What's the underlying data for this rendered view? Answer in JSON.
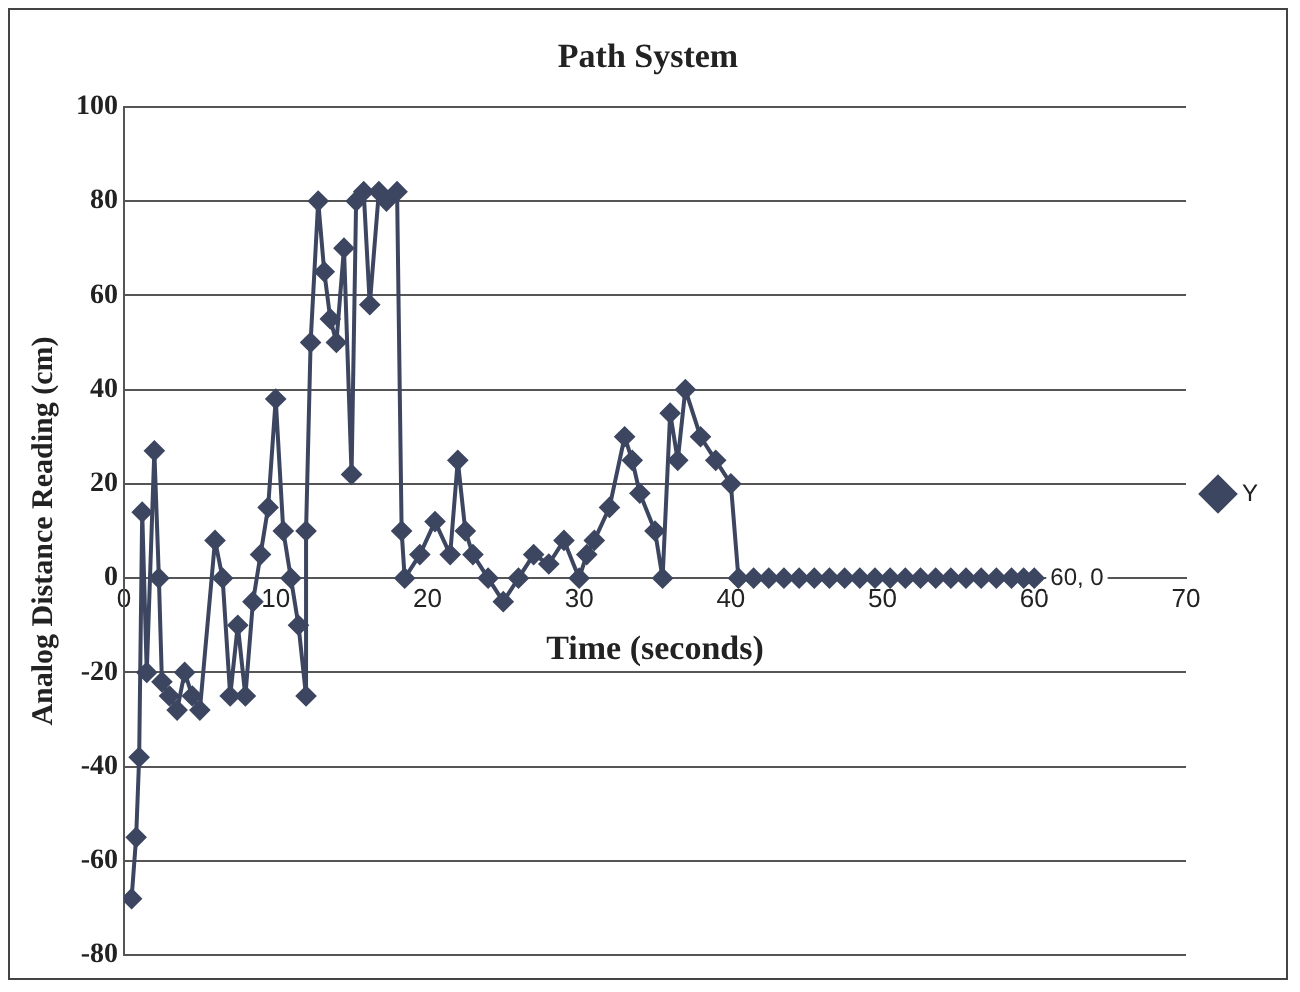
{
  "chart_data": {
    "type": "line",
    "title": "Path System",
    "xlabel": "Time (seconds)",
    "ylabel": "Analog Distance Reading (cm)",
    "xlim": [
      0,
      70
    ],
    "xticks": [
      0,
      10,
      20,
      30,
      40,
      50,
      60,
      70
    ],
    "ylim": [
      -80,
      100
    ],
    "yticks": [
      -80,
      -60,
      -40,
      -20,
      0,
      20,
      40,
      60,
      80,
      100
    ],
    "grid": "y",
    "legend": "right",
    "marker": "diamond",
    "line_style": "solid",
    "annotations": [
      {
        "text": "60, 0",
        "x": 60,
        "y": 0
      }
    ],
    "series": [
      {
        "name": "Y",
        "color": "#3d4660",
        "x": [
          0.5,
          0.8,
          1,
          1.2,
          1.5,
          2,
          2.3,
          2.5,
          3,
          3.5,
          4,
          4.5,
          5,
          6,
          6.5,
          7,
          7.5,
          8,
          8.5,
          9,
          9.5,
          10,
          10.5,
          11,
          11.5,
          12,
          12,
          12.3,
          12.8,
          13.2,
          13.6,
          14,
          14.5,
          15,
          15.3,
          15.8,
          16.2,
          16.8,
          17.3,
          18,
          18.3,
          18.5,
          19.5,
          20.5,
          21.5,
          22,
          22.5,
          23,
          24,
          25,
          26,
          27,
          28,
          29,
          30,
          30.5,
          31,
          32,
          33,
          33.5,
          34,
          35,
          35.5,
          36,
          36.5,
          37,
          38,
          39,
          40,
          40.5,
          41.5,
          42.5,
          43.5,
          44.5,
          45.5,
          46.5,
          47.5,
          48.5,
          49.5,
          50.5,
          51.5,
          52.5,
          53.5,
          54.5,
          55.5,
          56.5,
          57.5,
          58.5,
          59.3,
          60
        ],
        "values": [
          -68,
          -55,
          -38,
          14,
          -20,
          27,
          0,
          -22,
          -25,
          -28,
          -20,
          -25,
          -28,
          8,
          0,
          -25,
          -10,
          -25,
          -5,
          5,
          15,
          38,
          10,
          0,
          -10,
          -25,
          10,
          50,
          80,
          65,
          55,
          50,
          70,
          22,
          80,
          82,
          58,
          82,
          80,
          82,
          10,
          0,
          5,
          12,
          5,
          25,
          10,
          5,
          0,
          -5,
          0,
          5,
          3,
          8,
          0,
          5,
          8,
          15,
          30,
          25,
          18,
          10,
          0,
          35,
          25,
          40,
          30,
          25,
          20,
          0,
          0,
          0,
          0,
          0,
          0,
          0,
          0,
          0,
          0,
          0,
          0,
          0,
          0,
          0,
          0,
          0,
          0,
          0,
          0,
          0
        ]
      }
    ]
  }
}
